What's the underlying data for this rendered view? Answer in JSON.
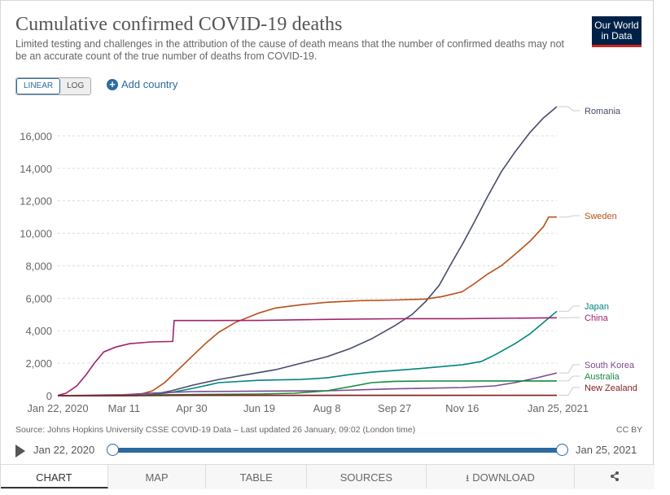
{
  "header": {
    "title": "Cumulative confirmed COVID-19 deaths",
    "subtitle": "Limited testing and challenges in the attribution of the cause of death means that the number of confirmed deaths may not be an accurate count of the true number of deaths from COVID-19.",
    "logo_line1": "Our World",
    "logo_line2": "in Data"
  },
  "controls": {
    "linear_label": "LINEAR",
    "log_label": "LOG",
    "add_country_label": "Add country"
  },
  "chart_data": {
    "type": "line",
    "title": "Cumulative confirmed COVID-19 deaths",
    "xlabel": "",
    "ylabel": "",
    "x_start": "2020-01-22",
    "x_end": "2021-01-25",
    "xticks": [
      {
        "date": "2020-01-22",
        "label": "Jan 22, 2020"
      },
      {
        "date": "2020-03-11",
        "label": "Mar 11"
      },
      {
        "date": "2020-04-30",
        "label": "Apr 30"
      },
      {
        "date": "2020-06-19",
        "label": "Jun 19"
      },
      {
        "date": "2020-08-08",
        "label": "Aug 8"
      },
      {
        "date": "2020-09-27",
        "label": "Sep 27"
      },
      {
        "date": "2020-11-16",
        "label": "Nov 16"
      },
      {
        "date": "2021-01-25",
        "label": "Jan 25, 2021"
      }
    ],
    "yticks": [
      0,
      2000,
      4000,
      6000,
      8000,
      10000,
      12000,
      14000,
      16000
    ],
    "ytick_labels": [
      "0",
      "2,000",
      "4,000",
      "6,000",
      "8,000",
      "10,000",
      "12,000",
      "14,000",
      "16,000"
    ],
    "ylim": [
      0,
      17800
    ],
    "grid": true,
    "legend_placement": "right (labels at line ends)",
    "series": [
      {
        "name": "Romania",
        "color": "#464b6e",
        "points": [
          [
            "2020-01-22",
            0
          ],
          [
            "2020-03-20",
            0
          ],
          [
            "2020-04-01",
            70
          ],
          [
            "2020-04-15",
            300
          ],
          [
            "2020-05-01",
            650
          ],
          [
            "2020-05-20",
            1000
          ],
          [
            "2020-06-10",
            1300
          ],
          [
            "2020-07-01",
            1600
          ],
          [
            "2020-07-20",
            2000
          ],
          [
            "2020-08-08",
            2400
          ],
          [
            "2020-08-25",
            2900
          ],
          [
            "2020-09-10",
            3500
          ],
          [
            "2020-09-27",
            4300
          ],
          [
            "2020-10-10",
            5000
          ],
          [
            "2020-10-20",
            5800
          ],
          [
            "2020-10-30",
            6800
          ],
          [
            "2020-11-09",
            8300
          ],
          [
            "2020-11-16",
            9300
          ],
          [
            "2020-11-25",
            10700
          ],
          [
            "2020-12-05",
            12300
          ],
          [
            "2020-12-15",
            13800
          ],
          [
            "2020-12-25",
            15000
          ],
          [
            "2021-01-05",
            16200
          ],
          [
            "2021-01-15",
            17100
          ],
          [
            "2021-01-25",
            17800
          ]
        ]
      },
      {
        "name": "Sweden",
        "color": "#b84e19",
        "points": [
          [
            "2020-01-22",
            0
          ],
          [
            "2020-03-11",
            0
          ],
          [
            "2020-03-20",
            20
          ],
          [
            "2020-04-01",
            300
          ],
          [
            "2020-04-10",
            800
          ],
          [
            "2020-04-20",
            1600
          ],
          [
            "2020-04-30",
            2400
          ],
          [
            "2020-05-10",
            3200
          ],
          [
            "2020-05-20",
            3900
          ],
          [
            "2020-06-01",
            4500
          ],
          [
            "2020-06-19",
            5100
          ],
          [
            "2020-07-01",
            5400
          ],
          [
            "2020-07-20",
            5600
          ],
          [
            "2020-08-08",
            5750
          ],
          [
            "2020-09-01",
            5850
          ],
          [
            "2020-09-27",
            5890
          ],
          [
            "2020-10-20",
            5950
          ],
          [
            "2020-11-01",
            6100
          ],
          [
            "2020-11-16",
            6400
          ],
          [
            "2020-11-25",
            6900
          ],
          [
            "2020-12-05",
            7500
          ],
          [
            "2020-12-15",
            8000
          ],
          [
            "2020-12-25",
            8700
          ],
          [
            "2021-01-05",
            9500
          ],
          [
            "2021-01-15",
            10400
          ],
          [
            "2021-01-19",
            11000
          ],
          [
            "2021-01-25",
            11000
          ]
        ]
      },
      {
        "name": "Japan",
        "color": "#00847e",
        "points": [
          [
            "2020-01-22",
            0
          ],
          [
            "2020-03-11",
            10
          ],
          [
            "2020-04-01",
            60
          ],
          [
            "2020-04-15",
            200
          ],
          [
            "2020-05-01",
            450
          ],
          [
            "2020-05-20",
            800
          ],
          [
            "2020-06-19",
            950
          ],
          [
            "2020-07-20",
            1000
          ],
          [
            "2020-08-08",
            1100
          ],
          [
            "2020-08-25",
            1300
          ],
          [
            "2020-09-10",
            1450
          ],
          [
            "2020-09-27",
            1550
          ],
          [
            "2020-10-20",
            1700
          ],
          [
            "2020-11-16",
            1900
          ],
          [
            "2020-11-30",
            2100
          ],
          [
            "2020-12-10",
            2500
          ],
          [
            "2020-12-25",
            3200
          ],
          [
            "2021-01-05",
            3800
          ],
          [
            "2021-01-15",
            4500
          ],
          [
            "2021-01-25",
            5200
          ]
        ]
      },
      {
        "name": "China",
        "color": "#a2226b",
        "points": [
          [
            "2020-01-22",
            17
          ],
          [
            "2020-01-28",
            150
          ],
          [
            "2020-02-05",
            600
          ],
          [
            "2020-02-12",
            1300
          ],
          [
            "2020-02-18",
            2000
          ],
          [
            "2020-02-25",
            2700
          ],
          [
            "2020-03-05",
            3000
          ],
          [
            "2020-03-15",
            3200
          ],
          [
            "2020-03-31",
            3310
          ],
          [
            "2020-04-16",
            3340
          ],
          [
            "2020-04-17",
            4630
          ],
          [
            "2020-06-19",
            4634
          ],
          [
            "2020-08-08",
            4700
          ],
          [
            "2020-09-27",
            4740
          ],
          [
            "2020-11-16",
            4742
          ],
          [
            "2021-01-25",
            4800
          ]
        ]
      },
      {
        "name": "South Korea",
        "color": "#7b4a8c",
        "points": [
          [
            "2020-01-22",
            0
          ],
          [
            "2020-03-11",
            60
          ],
          [
            "2020-04-01",
            160
          ],
          [
            "2020-04-30",
            250
          ],
          [
            "2020-06-19",
            280
          ],
          [
            "2020-08-08",
            300
          ],
          [
            "2020-09-27",
            420
          ],
          [
            "2020-11-16",
            500
          ],
          [
            "2020-12-10",
            600
          ],
          [
            "2020-12-25",
            800
          ],
          [
            "2021-01-10",
            1100
          ],
          [
            "2021-01-25",
            1400
          ]
        ]
      },
      {
        "name": "Australia",
        "color": "#158a3e",
        "points": [
          [
            "2020-01-22",
            0
          ],
          [
            "2020-03-11",
            3
          ],
          [
            "2020-04-15",
            60
          ],
          [
            "2020-06-19",
            100
          ],
          [
            "2020-07-15",
            150
          ],
          [
            "2020-08-08",
            300
          ],
          [
            "2020-08-25",
            550
          ],
          [
            "2020-09-10",
            800
          ],
          [
            "2020-09-27",
            880
          ],
          [
            "2020-10-20",
            905
          ],
          [
            "2021-01-25",
            909
          ]
        ]
      },
      {
        "name": "New Zealand",
        "color": "#8b1a1a",
        "points": [
          [
            "2020-01-22",
            0
          ],
          [
            "2020-03-25",
            1
          ],
          [
            "2020-05-01",
            20
          ],
          [
            "2021-01-25",
            25
          ]
        ]
      }
    ]
  },
  "footer": {
    "source": "Source: Johns Hopkins University CSSE COVID-19 Data – Last updated 26 January, 09:02 (London time)",
    "license": "CC BY"
  },
  "timeline": {
    "start_label": "Jan 22, 2020",
    "end_label": "Jan 25, 2021"
  },
  "tabs": [
    {
      "label": "CHART"
    },
    {
      "label": "MAP"
    },
    {
      "label": "TABLE"
    },
    {
      "label": "SOURCES"
    },
    {
      "label": "DOWNLOAD"
    }
  ],
  "icons": {
    "download": "download-icon",
    "share": "share-icon",
    "play": "play-icon",
    "add": "plus-circle-icon"
  },
  "colors": {
    "accent": "#2c6aa0",
    "logo_bg": "#002147",
    "logo_bar": "#ce261e"
  }
}
